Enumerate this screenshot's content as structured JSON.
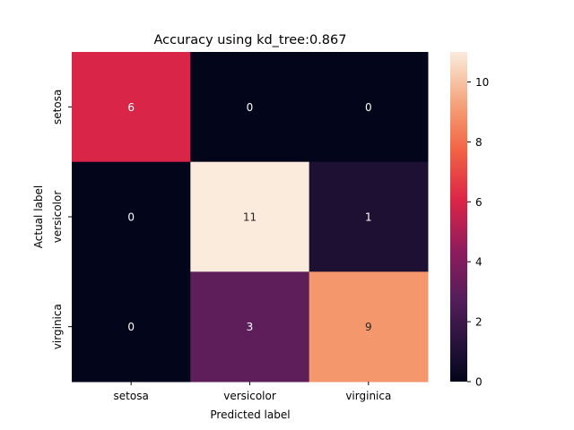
{
  "chart_data": {
    "type": "heatmap",
    "title": "Accuracy using kd_tree:0.867",
    "xlabel": "Predicted label",
    "ylabel": "Actual label",
    "x_categories": [
      "setosa",
      "versicolor",
      "virginica"
    ],
    "y_categories": [
      "setosa",
      "versicolor",
      "virginica"
    ],
    "values": [
      [
        6,
        0,
        0
      ],
      [
        0,
        11,
        1
      ],
      [
        0,
        3,
        9
      ]
    ],
    "colorbar": {
      "min": 0,
      "max": 11,
      "ticks": [
        0,
        2,
        4,
        6,
        8,
        10
      ]
    },
    "colormap": "rocket",
    "annotations": true,
    "grid": false
  }
}
